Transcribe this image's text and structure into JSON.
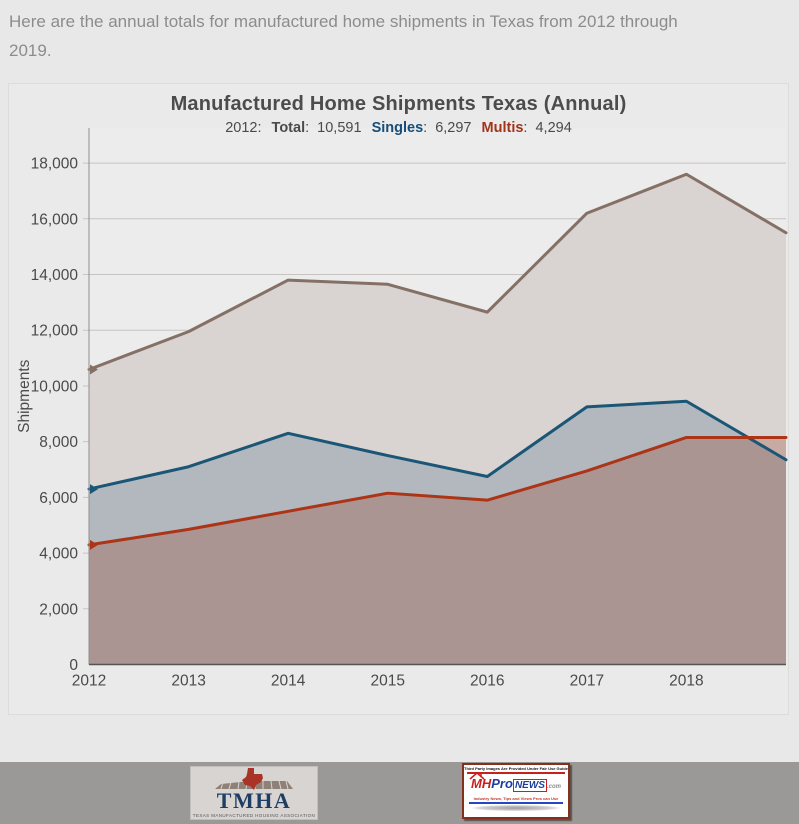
{
  "page": {
    "intro": "Here are the annual totals for manufactured home shipments in Texas from 2012 through 2019."
  },
  "chart": {
    "title": "Manufactured Home Shipments Texas (Annual)",
    "ylabel": "Shipments",
    "tooltip": {
      "year": "2012:",
      "sep": ":",
      "total_label": "Total",
      "total_value": "10,591",
      "singles_label": "Singles",
      "singles_value": "6,297",
      "multis_label": "Multis",
      "multis_value": "4,294"
    },
    "colors": {
      "total": "#857066",
      "singles": "#1b5676",
      "multis": "#ac3417"
    }
  },
  "chart_data": {
    "type": "area",
    "title": "Manufactured Home Shipments Texas (Annual)",
    "xlabel": "",
    "ylabel": "Shipments",
    "x": [
      2012,
      2013,
      2014,
      2015,
      2016,
      2017,
      2018,
      2019
    ],
    "xtick_labels": [
      "2012",
      "2013",
      "2014",
      "2015",
      "2016",
      "2017",
      "2018"
    ],
    "ylim": [
      0,
      19260
    ],
    "yticks": [
      0,
      2000,
      4000,
      6000,
      8000,
      10000,
      12000,
      14000,
      16000,
      18000
    ],
    "ytick_labels": [
      "0",
      "2,000",
      "4,000",
      "6,000",
      "8,000",
      "10,000",
      "12,000",
      "14,000",
      "16,000",
      "18,000"
    ],
    "grid": true,
    "series": [
      {
        "name": "Total",
        "line_color": "#857066",
        "fill_color": "#d9d4d2",
        "values": [
          10591,
          11950,
          13800,
          13650,
          12650,
          16200,
          17600,
          15500
        ]
      },
      {
        "name": "Singles",
        "line_color": "#1b5676",
        "fill_color": "rgba(43,88,115,0.22)",
        "values": [
          6297,
          7100,
          8300,
          7500,
          6750,
          9250,
          9450,
          7350
        ]
      },
      {
        "name": "Multis",
        "line_color": "#ac3417",
        "fill_color": "rgba(156,60,38,0.28)",
        "values": [
          4294,
          4850,
          5500,
          6150,
          5900,
          6950,
          8150,
          8150
        ]
      }
    ]
  },
  "footer": {
    "tmha": {
      "name": "TMHA",
      "caption": "TEXAS MANUFACTURED HOUSING ASSOCIATION"
    },
    "mhpronews": {
      "fair_use": "Third Party Images Are Provided Under Fair Use Guidelines.",
      "mh": "MH",
      "pro": "Pro",
      "news": "NEWS",
      "dotcom": ".com",
      "tagline": "Industry News, Tips and Views Pros can Use"
    }
  }
}
